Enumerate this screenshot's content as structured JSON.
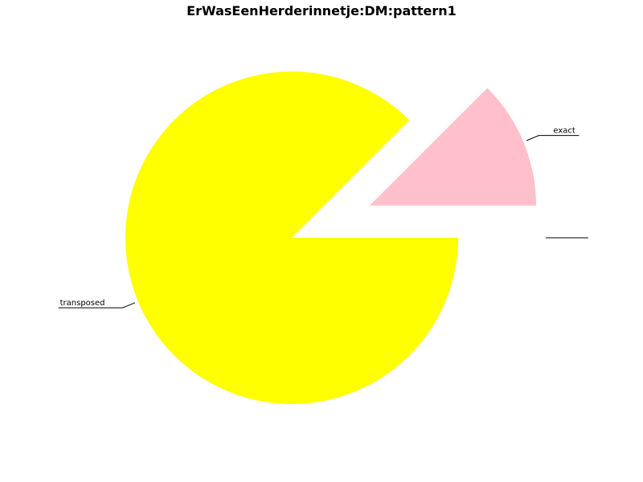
{
  "chart_data": {
    "type": "pie",
    "title": "ErWasEenHerderinnetje:DM:pattern1",
    "slices": [
      {
        "label": "transposed",
        "value": 87.5,
        "color": "#ffff00",
        "exploded": false
      },
      {
        "label": "exact",
        "value": 12.5,
        "color": "#ffc0cb",
        "exploded": true
      },
      {
        "label": "",
        "value": 0,
        "color": "#ffffff",
        "exploded": true
      },
      {
        "label": "",
        "value": 0,
        "color": "#ffffff",
        "exploded": true
      }
    ],
    "start_angle": 0,
    "direction": "clockwise",
    "legend": "none"
  }
}
